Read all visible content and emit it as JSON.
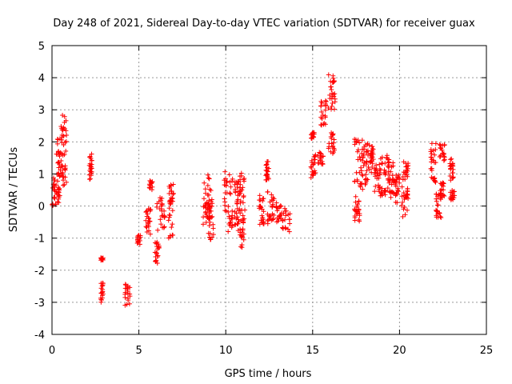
{
  "chart_data": {
    "type": "scatter",
    "title": "Day 248 of 2021, Sidereal Day-to-day VTEC variation (SDTVAR) for receiver guax",
    "xlabel": "GPS time / hours",
    "ylabel": "SDTVAR / TECUs",
    "xlim": [
      0,
      25
    ],
    "ylim": [
      -4,
      5
    ],
    "xticks": [
      0,
      5,
      10,
      15,
      20,
      25
    ],
    "yticks": [
      -4,
      -3,
      -2,
      -1,
      0,
      1,
      2,
      3,
      4,
      5
    ],
    "grid": true,
    "marker": "+",
    "color": "#ff0000",
    "clusters": [
      {
        "x": [
          0.0,
          0.25
        ],
        "y": [
          0.0,
          0.9
        ]
      },
      {
        "x": [
          0.25,
          0.5
        ],
        "y": [
          0.1,
          2.1
        ]
      },
      {
        "x": [
          0.5,
          0.85
        ],
        "y": [
          0.6,
          2.9
        ]
      },
      {
        "x": [
          2.15,
          2.3
        ],
        "y": [
          0.8,
          1.7
        ]
      },
      {
        "x": [
          2.8,
          2.95
        ],
        "y": [
          -1.7,
          -1.6
        ]
      },
      {
        "x": [
          2.8,
          2.95
        ],
        "y": [
          -3.0,
          -2.4
        ]
      },
      {
        "x": [
          4.2,
          4.5
        ],
        "y": [
          -3.1,
          -2.4
        ]
      },
      {
        "x": [
          4.9,
          5.1
        ],
        "y": [
          -1.2,
          -0.9
        ]
      },
      {
        "x": [
          5.4,
          5.7
        ],
        "y": [
          -0.9,
          0.0
        ]
      },
      {
        "x": [
          5.6,
          5.8
        ],
        "y": [
          0.5,
          0.8
        ]
      },
      {
        "x": [
          5.9,
          6.2
        ],
        "y": [
          -1.8,
          -1.1
        ]
      },
      {
        "x": [
          6.0,
          6.5
        ],
        "y": [
          -0.8,
          0.3
        ]
      },
      {
        "x": [
          6.7,
          7.0
        ],
        "y": [
          -1.0,
          0.8
        ]
      },
      {
        "x": [
          8.7,
          9.1
        ],
        "y": [
          -0.6,
          1.0
        ]
      },
      {
        "x": [
          9.0,
          9.3
        ],
        "y": [
          -1.1,
          0.5
        ]
      },
      {
        "x": [
          9.9,
          10.4
        ],
        "y": [
          -0.9,
          1.1
        ]
      },
      {
        "x": [
          10.5,
          10.8
        ],
        "y": [
          -0.8,
          0.8
        ]
      },
      {
        "x": [
          10.8,
          11.1
        ],
        "y": [
          -1.3,
          1.1
        ]
      },
      {
        "x": [
          11.9,
          12.2
        ],
        "y": [
          -0.6,
          0.4
        ]
      },
      {
        "x": [
          12.3,
          12.5
        ],
        "y": [
          0.8,
          1.4
        ]
      },
      {
        "x": [
          12.4,
          12.8
        ],
        "y": [
          -0.6,
          0.5
        ]
      },
      {
        "x": [
          12.9,
          13.2
        ],
        "y": [
          -0.5,
          0.1
        ]
      },
      {
        "x": [
          13.2,
          13.7
        ],
        "y": [
          -0.8,
          0.0
        ]
      },
      {
        "x": [
          14.9,
          15.1
        ],
        "y": [
          2.1,
          2.3
        ]
      },
      {
        "x": [
          14.9,
          15.2
        ],
        "y": [
          0.7,
          1.6
        ]
      },
      {
        "x": [
          15.3,
          15.6
        ],
        "y": [
          1.3,
          1.8
        ]
      },
      {
        "x": [
          15.4,
          15.8
        ],
        "y": [
          2.5,
          3.3
        ]
      },
      {
        "x": [
          15.9,
          16.3
        ],
        "y": [
          2.9,
          4.1
        ]
      },
      {
        "x": [
          15.9,
          16.3
        ],
        "y": [
          1.6,
          2.3
        ]
      },
      {
        "x": [
          17.4,
          17.7
        ],
        "y": [
          -0.6,
          0.3
        ]
      },
      {
        "x": [
          17.4,
          17.9
        ],
        "y": [
          0.4,
          2.1
        ]
      },
      {
        "x": [
          17.8,
          18.3
        ],
        "y": [
          0.6,
          2.0
        ]
      },
      {
        "x": [
          18.3,
          18.5
        ],
        "y": [
          1.0,
          1.9
        ]
      },
      {
        "x": [
          18.5,
          18.9
        ],
        "y": [
          0.4,
          1.3
        ]
      },
      {
        "x": [
          18.8,
          19.2
        ],
        "y": [
          0.3,
          0.6
        ]
      },
      {
        "x": [
          18.9,
          19.4
        ],
        "y": [
          0.8,
          1.6
        ]
      },
      {
        "x": [
          19.3,
          19.7
        ],
        "y": [
          0.2,
          1.5
        ]
      },
      {
        "x": [
          19.7,
          20.0
        ],
        "y": [
          0.1,
          1.0
        ]
      },
      {
        "x": [
          20.1,
          20.5
        ],
        "y": [
          -0.4,
          0.6
        ]
      },
      {
        "x": [
          20.2,
          20.5
        ],
        "y": [
          0.8,
          1.4
        ]
      },
      {
        "x": [
          21.8,
          22.1
        ],
        "y": [
          0.7,
          2.0
        ]
      },
      {
        "x": [
          22.1,
          22.4
        ],
        "y": [
          -0.4,
          0.5
        ]
      },
      {
        "x": [
          22.3,
          22.6
        ],
        "y": [
          1.4,
          2.0
        ]
      },
      {
        "x": [
          22.3,
          22.6
        ],
        "y": [
          0.2,
          0.8
        ]
      },
      {
        "x": [
          22.9,
          23.1
        ],
        "y": [
          0.8,
          1.5
        ]
      },
      {
        "x": [
          22.9,
          23.2
        ],
        "y": [
          0.1,
          0.5
        ]
      }
    ]
  }
}
